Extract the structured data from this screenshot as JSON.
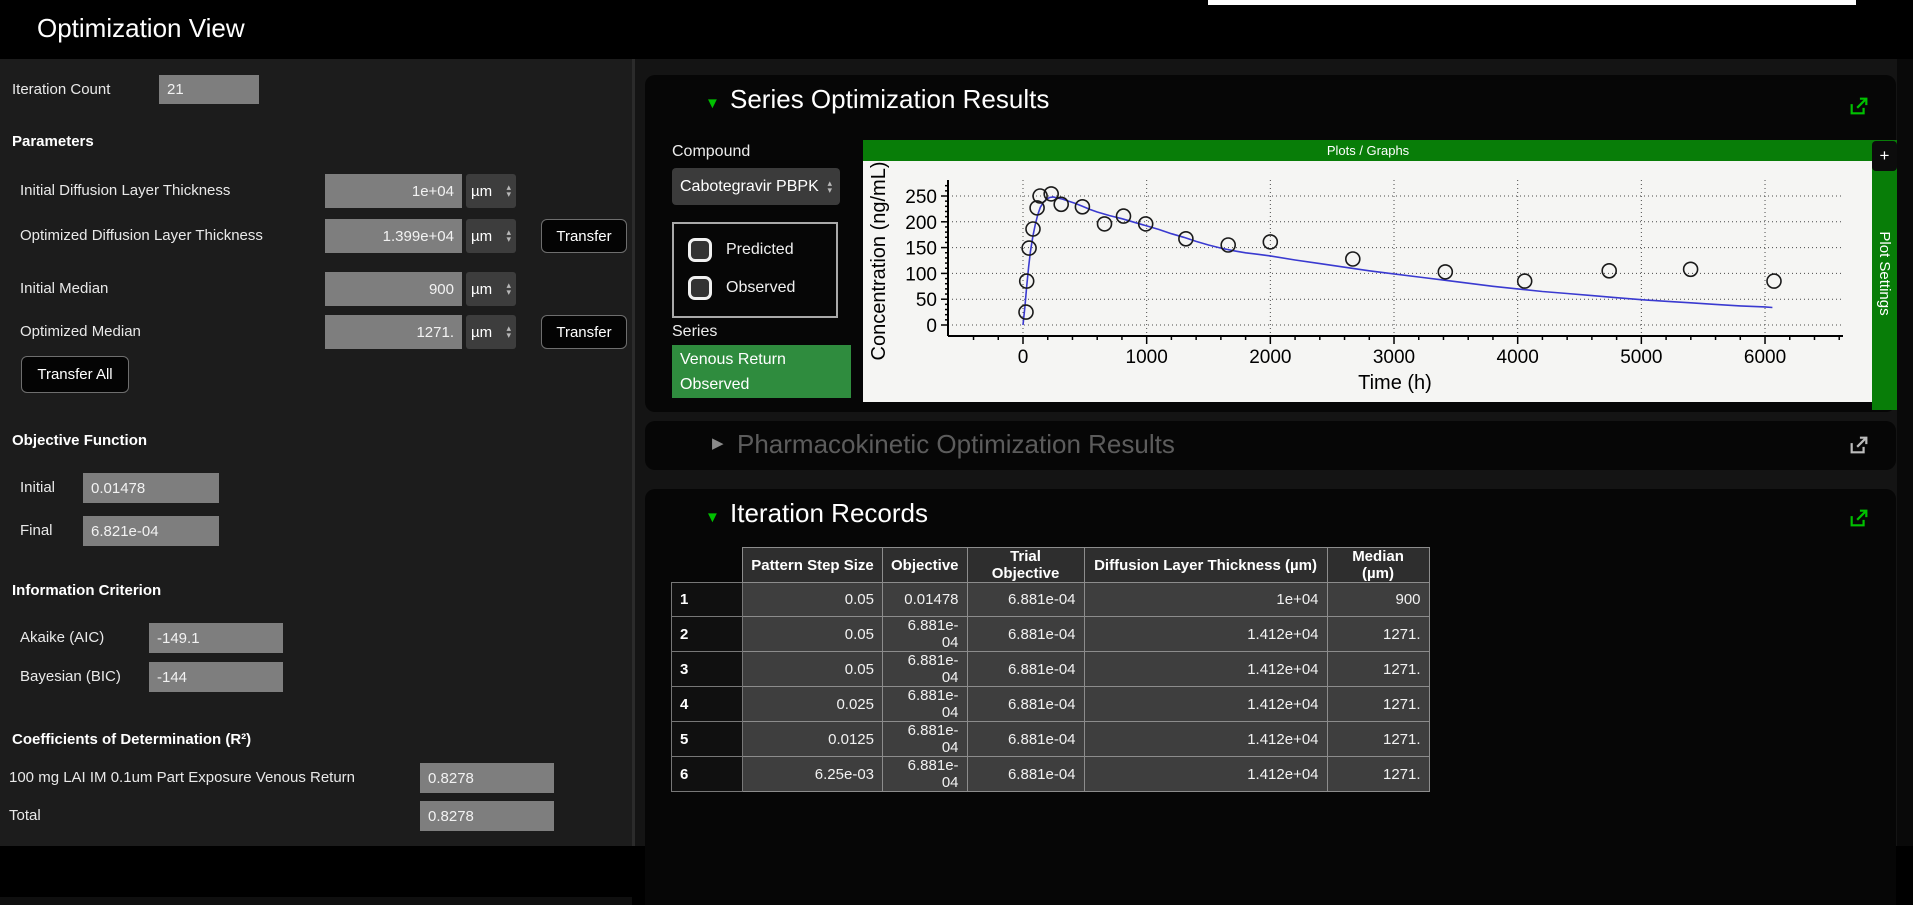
{
  "header": {
    "title": "Optimization View"
  },
  "left_panel": {
    "iteration_count": {
      "label": "Iteration Count",
      "value": "21"
    },
    "parameters": {
      "heading": "Parameters",
      "transfer_button_label": "Transfer",
      "transfer_all_label": "Transfer All",
      "rows": [
        {
          "label": "Initial Diffusion Layer Thickness",
          "value": "1e+04",
          "unit": "µm",
          "transfer": false
        },
        {
          "label": "Optimized Diffusion Layer Thickness",
          "value": "1.399e+04",
          "unit": "µm",
          "transfer": true
        },
        {
          "label": "Initial Median",
          "value": "900",
          "unit": "µm",
          "transfer": false
        },
        {
          "label": "Optimized Median",
          "value": "1271.",
          "unit": "µm",
          "transfer": true
        }
      ]
    },
    "objective_function": {
      "heading": "Objective Function",
      "rows": [
        {
          "label": "Initial",
          "value": "0.01478"
        },
        {
          "label": "Final",
          "value": "6.821e-04"
        }
      ]
    },
    "information_criterion": {
      "heading": "Information Criterion",
      "rows": [
        {
          "label": "Akaike (AIC)",
          "value": "-149.1"
        },
        {
          "label": "Bayesian (BIC)",
          "value": "-144"
        }
      ]
    },
    "coefficients": {
      "heading": "Coefficients of Determination (R²)",
      "rows": [
        {
          "label": "100 mg LAI IM 0.1um Part Exposure Venous Return",
          "value": "0.8278"
        },
        {
          "label": "Total",
          "value": "0.8278"
        }
      ]
    }
  },
  "series_panel": {
    "title": "Series Optimization Results",
    "compound": {
      "label": "Compound",
      "selected": "Cabotegravir PBPK"
    },
    "display_options": [
      {
        "label": "Predicted",
        "checked": false
      },
      {
        "label": "Observed",
        "checked": false
      }
    ],
    "series": {
      "label": "Series",
      "selected_item_line1": "Venous Return",
      "selected_item_line2": "Observed"
    },
    "add_tab_label": "+",
    "plot_settings_tab": "Plot Settings"
  },
  "pk_panel": {
    "title": "Pharmacokinetic Optimization Results"
  },
  "iteration_panel": {
    "title": "Iteration Records",
    "table": {
      "columns": [
        "Pattern Step Size",
        "Objective",
        "Trial Objective",
        "Diffusion Layer Thickness (µm)",
        "Median (µm)"
      ],
      "rows": [
        {
          "n": "1",
          "cells": [
            "0.05",
            "0.01478",
            "6.881e-04",
            "1e+04",
            "900"
          ]
        },
        {
          "n": "2",
          "cells": [
            "0.05",
            "6.881e-04",
            "6.881e-04",
            "1.412e+04",
            "1271."
          ]
        },
        {
          "n": "3",
          "cells": [
            "0.05",
            "6.881e-04",
            "6.881e-04",
            "1.412e+04",
            "1271."
          ]
        },
        {
          "n": "4",
          "cells": [
            "0.025",
            "6.881e-04",
            "6.881e-04",
            "1.412e+04",
            "1271."
          ]
        },
        {
          "n": "5",
          "cells": [
            "0.0125",
            "6.881e-04",
            "6.881e-04",
            "1.412e+04",
            "1271."
          ]
        },
        {
          "n": "6",
          "cells": [
            "6.25e-03",
            "6.881e-04",
            "6.881e-04",
            "1.412e+04",
            "1271."
          ]
        }
      ]
    }
  },
  "chart_data": {
    "type": "line+scatter",
    "title": "Plots / Graphs",
    "xlabel": "Time (h)",
    "ylabel": "Concentration (ng/mL)",
    "xlim": [
      -600,
      6630
    ],
    "ylim": [
      0,
      281
    ],
    "x_ticks": [
      0,
      1000,
      2000,
      3000,
      4000,
      5000,
      6000
    ],
    "y_ticks": [
      0,
      50,
      100,
      150,
      200,
      250
    ],
    "grid": true,
    "colors": {
      "line": "#3a3ad0",
      "marker": "#1a1a1a",
      "plot_bg": "#f5f5f3",
      "accent_green": "#00c000",
      "bar_green": "#087d08"
    },
    "series": [
      {
        "name": "Venous Return Predicted",
        "type": "line",
        "points": [
          [
            0,
            0
          ],
          [
            15,
            35
          ],
          [
            30,
            75
          ],
          [
            45,
            112
          ],
          [
            60,
            142
          ],
          [
            80,
            172
          ],
          [
            100,
            196
          ],
          [
            120,
            214
          ],
          [
            140,
            228
          ],
          [
            165,
            238
          ],
          [
            190,
            244
          ],
          [
            215,
            247
          ],
          [
            245,
            248
          ],
          [
            280,
            246
          ],
          [
            320,
            244
          ],
          [
            370,
            240
          ],
          [
            420,
            236
          ],
          [
            480,
            230
          ],
          [
            540,
            224
          ],
          [
            600,
            219
          ],
          [
            700,
            212
          ],
          [
            800,
            206
          ],
          [
            900,
            199
          ],
          [
            1000,
            192
          ],
          [
            1100,
            185
          ],
          [
            1200,
            177
          ],
          [
            1300,
            170
          ],
          [
            1400,
            162
          ],
          [
            1500,
            155
          ],
          [
            1600,
            149
          ],
          [
            1700,
            144
          ],
          [
            1800,
            140
          ],
          [
            1900,
            137
          ],
          [
            2000,
            134
          ],
          [
            2200,
            126
          ],
          [
            2400,
            119
          ],
          [
            2600,
            112
          ],
          [
            2800,
            105
          ],
          [
            3000,
            99
          ],
          [
            3200,
            93
          ],
          [
            3400,
            87
          ],
          [
            3600,
            81
          ],
          [
            3800,
            75
          ],
          [
            4000,
            70
          ],
          [
            4200,
            65
          ],
          [
            4400,
            61
          ],
          [
            4600,
            57
          ],
          [
            4800,
            53
          ],
          [
            5000,
            49
          ],
          [
            5200,
            46
          ],
          [
            5400,
            43
          ],
          [
            5600,
            40
          ],
          [
            5800,
            37
          ],
          [
            6000,
            35
          ],
          [
            6060,
            34
          ]
        ]
      },
      {
        "name": "Venous Return Observed",
        "type": "scatter",
        "marker": "open-circle",
        "points": [
          [
            24,
            25
          ],
          [
            30,
            85
          ],
          [
            49,
            149
          ],
          [
            81,
            186
          ],
          [
            114,
            227
          ],
          [
            138,
            250
          ],
          [
            228,
            254
          ],
          [
            309,
            234
          ],
          [
            480,
            229
          ],
          [
            659,
            196
          ],
          [
            813,
            211
          ],
          [
            992,
            196
          ],
          [
            1317,
            167
          ],
          [
            1659,
            155
          ],
          [
            2000,
            161
          ],
          [
            2667,
            128
          ],
          [
            3415,
            103
          ],
          [
            4057,
            85
          ],
          [
            4740,
            105
          ],
          [
            5398,
            108
          ],
          [
            6073,
            85
          ]
        ]
      }
    ]
  }
}
